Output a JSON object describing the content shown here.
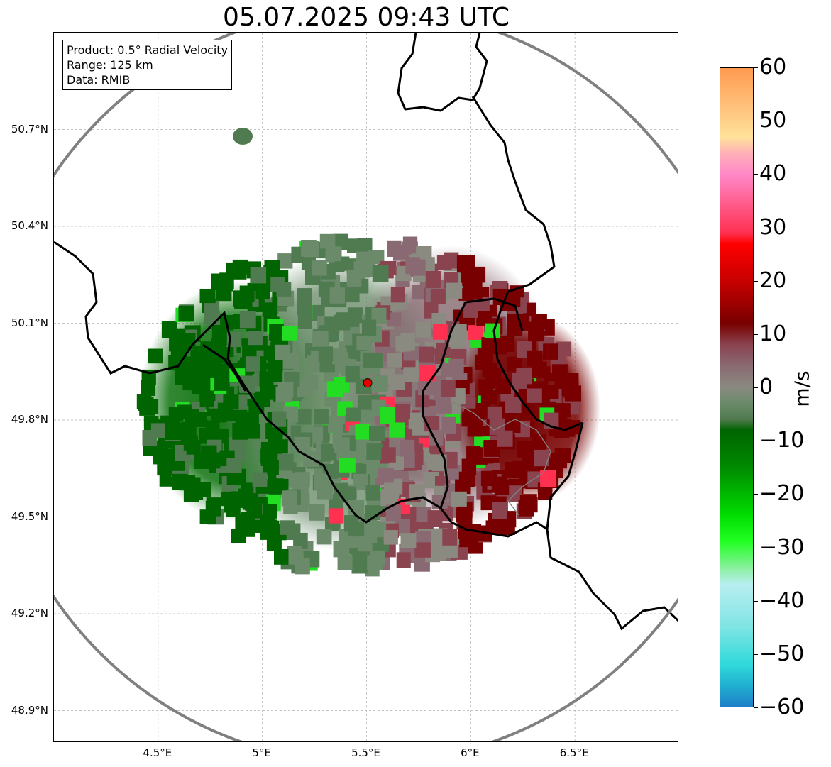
{
  "title": "05.07.2025 09:43 UTC",
  "info_box": {
    "product": "Product: 0.5° Radial Velocity",
    "range": "Range: 125 km",
    "data": "Data: RMIB"
  },
  "map": {
    "lon_range": [
      4.0,
      7.0
    ],
    "lat_range": [
      48.8,
      51.0
    ],
    "lon_ticks": [
      {
        "value": 4.5,
        "label": "4.5°E"
      },
      {
        "value": 5.0,
        "label": "5°E"
      },
      {
        "value": 5.5,
        "label": "5.5°E"
      },
      {
        "value": 6.0,
        "label": "6°E"
      },
      {
        "value": 6.5,
        "label": "6.5°E"
      }
    ],
    "lat_ticks": [
      {
        "value": 50.7,
        "label": "50.7°N"
      },
      {
        "value": 50.4,
        "label": "50.4°N"
      },
      {
        "value": 50.1,
        "label": "50.1°N"
      },
      {
        "value": 49.8,
        "label": "49.8°N"
      },
      {
        "value": 49.5,
        "label": "49.5°N"
      },
      {
        "value": 49.2,
        "label": "49.2°N"
      },
      {
        "value": 48.9,
        "label": "48.9°N"
      }
    ],
    "radar_site": {
      "lon": 5.505,
      "lat": 49.915,
      "color": "#e00000"
    },
    "range_ring_color": "#808080",
    "border_color": "#000000",
    "grid": "dashed"
  },
  "colorbar": {
    "unit": "m/s",
    "min": -60,
    "max": 60,
    "ticks": [
      {
        "value": 60,
        "label": "60"
      },
      {
        "value": 50,
        "label": "50"
      },
      {
        "value": 40,
        "label": "40"
      },
      {
        "value": 30,
        "label": "30"
      },
      {
        "value": 20,
        "label": "20"
      },
      {
        "value": 10,
        "label": "10"
      },
      {
        "value": 0,
        "label": "0"
      },
      {
        "value": -10,
        "label": "−10"
      },
      {
        "value": -20,
        "label": "−20"
      },
      {
        "value": -30,
        "label": "−30"
      },
      {
        "value": -40,
        "label": "−40"
      },
      {
        "value": -50,
        "label": "−50"
      },
      {
        "value": -60,
        "label": "−60"
      }
    ],
    "stops": [
      {
        "value": 60,
        "color": "#ff9a50"
      },
      {
        "value": 53,
        "color": "#ffc07a"
      },
      {
        "value": 47,
        "color": "#ffe29a"
      },
      {
        "value": 44,
        "color": "#ffb0b8"
      },
      {
        "value": 40,
        "color": "#ff88c8"
      },
      {
        "value": 35,
        "color": "#ff6090"
      },
      {
        "value": 29,
        "color": "#ff3050"
      },
      {
        "value": 27,
        "color": "#ff0000"
      },
      {
        "value": 20,
        "color": "#c80000"
      },
      {
        "value": 12,
        "color": "#780000"
      },
      {
        "value": 8,
        "color": "#8a4450"
      },
      {
        "value": 4,
        "color": "#8a6a72"
      },
      {
        "value": 0,
        "color": "#8a8a80"
      },
      {
        "value": -3,
        "color": "#6a8a6a"
      },
      {
        "value": -6,
        "color": "#507a50"
      },
      {
        "value": -8,
        "color": "#006400"
      },
      {
        "value": -15,
        "color": "#008a00"
      },
      {
        "value": -24,
        "color": "#00dd00"
      },
      {
        "value": -29,
        "color": "#22ff22"
      },
      {
        "value": -34,
        "color": "#8af0a0"
      },
      {
        "value": -37,
        "color": "#b8eef0"
      },
      {
        "value": -45,
        "color": "#80e4e4"
      },
      {
        "value": -52,
        "color": "#30dada"
      },
      {
        "value": -56,
        "color": "#20b0d0"
      },
      {
        "value": -60,
        "color": "#1e7ec8"
      }
    ]
  }
}
